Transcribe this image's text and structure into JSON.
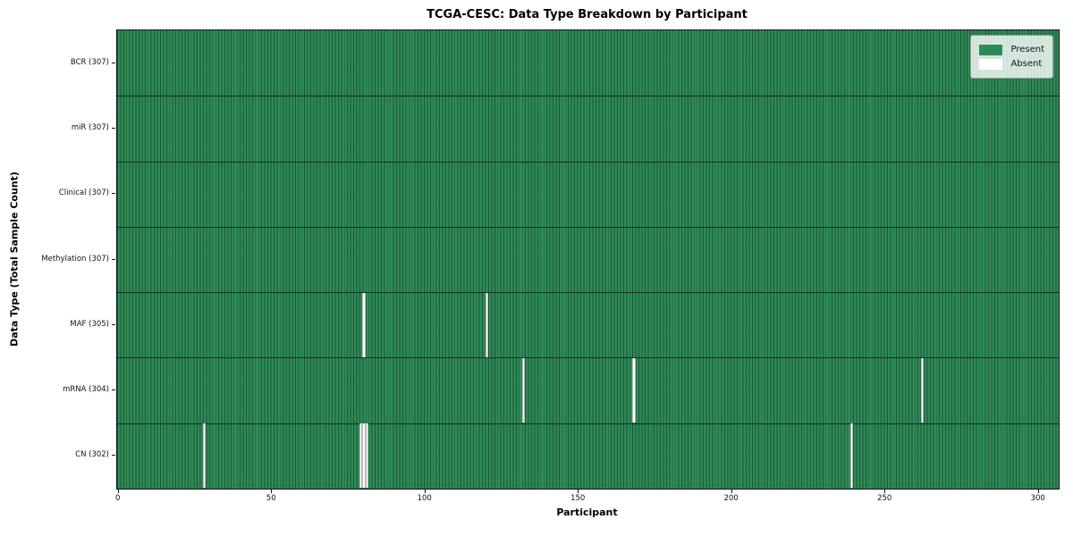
{
  "chart_data": {
    "type": "heatmap",
    "title": "TCGA-CESC: Data Type Breakdown by Participant",
    "xlabel": "Participant",
    "ylabel": "Data Type (Total Sample Count)",
    "n_participants": 307,
    "xlim": [
      -0.5,
      306.5
    ],
    "x_ticks": [
      0,
      50,
      100,
      150,
      200,
      250,
      300
    ],
    "rows": [
      {
        "label": "BCR (307)",
        "data_type": "BCR",
        "present_count": 307,
        "absent_participants": []
      },
      {
        "label": "miR (307)",
        "data_type": "miR",
        "present_count": 307,
        "absent_participants": []
      },
      {
        "label": "Clinical (307)",
        "data_type": "Clinical",
        "present_count": 307,
        "absent_participants": []
      },
      {
        "label": "Methylation (307)",
        "data_type": "Methylation",
        "present_count": 307,
        "absent_participants": []
      },
      {
        "label": "MAF (305)",
        "data_type": "MAF",
        "present_count": 305,
        "absent_participants": [
          80,
          120
        ]
      },
      {
        "label": "mRNA (304)",
        "data_type": "mRNA",
        "present_count": 304,
        "absent_participants": [
          132,
          168,
          262
        ]
      },
      {
        "label": "CN (302)",
        "data_type": "CN",
        "present_count": 302,
        "absent_participants": [
          28,
          79,
          80,
          81,
          239
        ]
      }
    ],
    "legend": {
      "position": "upper right",
      "entries": [
        {
          "label": "Present",
          "color": "#2e8b57"
        },
        {
          "label": "Absent",
          "color": "#ffffff"
        }
      ]
    },
    "colors": {
      "present": "#2e8b57",
      "absent": "#ffffff",
      "cell_edge": "rgba(0,0,0,0.38)",
      "row_divider": "rgba(5,20,10,0.72)",
      "plot_border": "#111111"
    },
    "grid": false
  }
}
